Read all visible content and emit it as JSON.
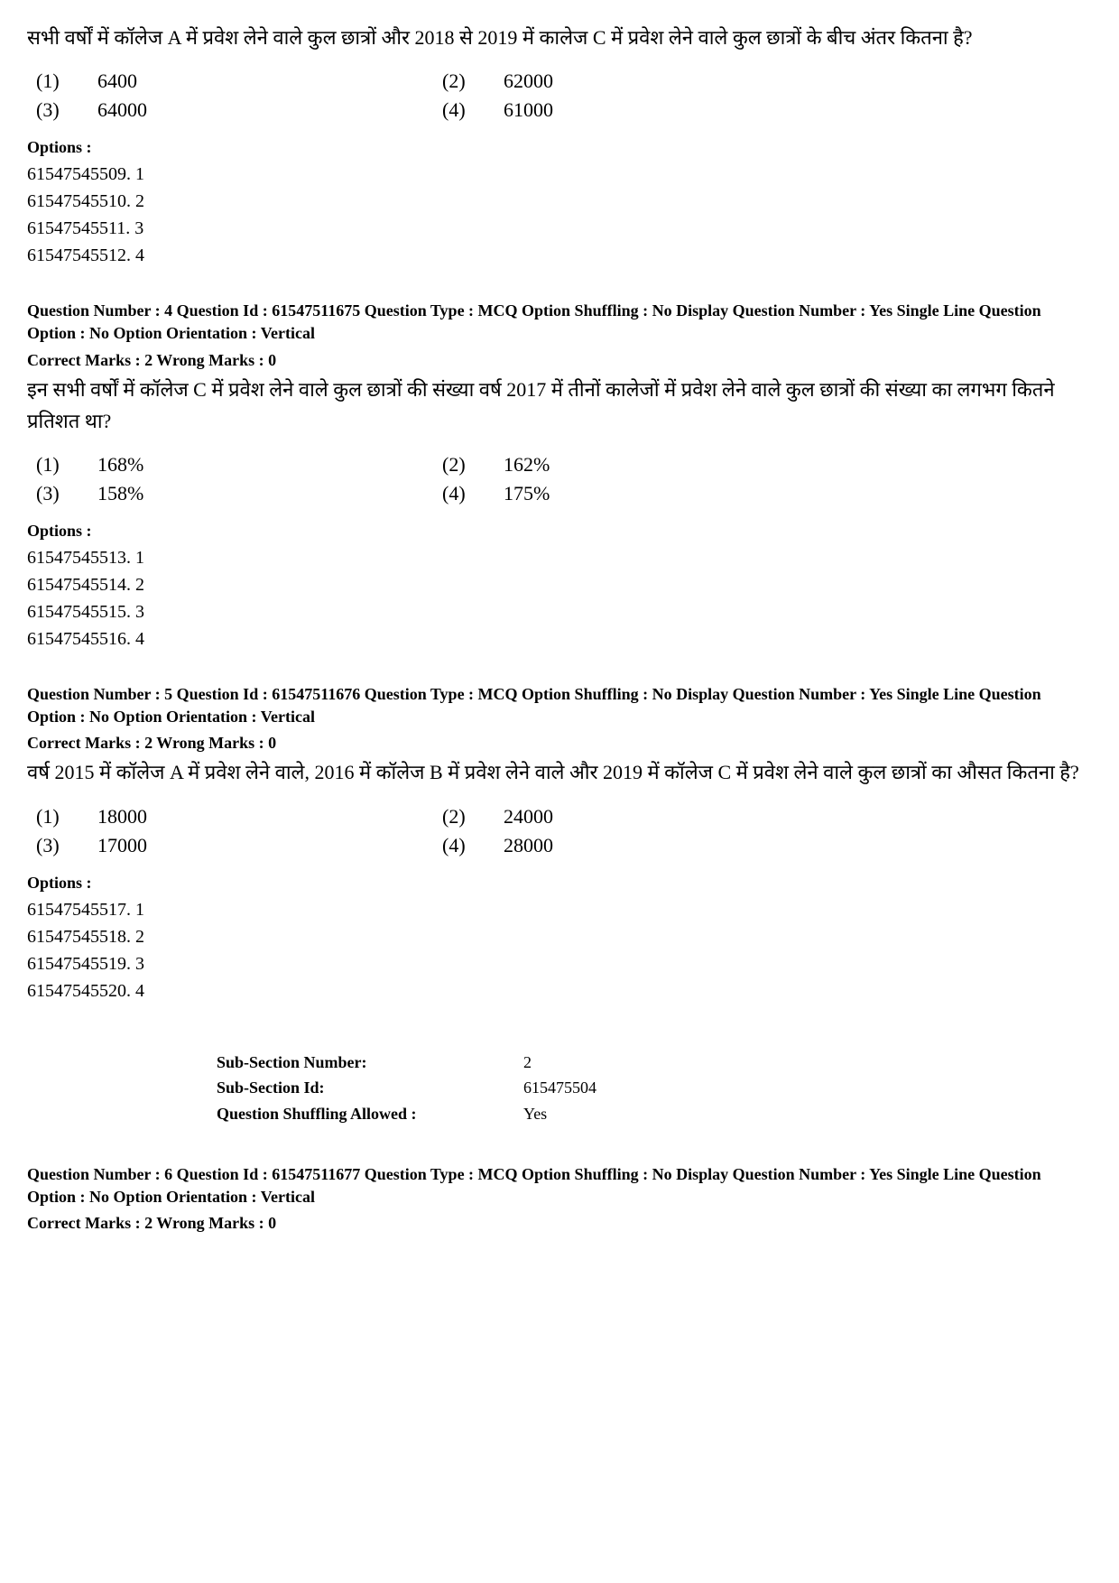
{
  "colors": {
    "text": "#000000",
    "background": "#ffffff"
  },
  "typography": {
    "base_fontsize": 22,
    "meta_fontsize": 18,
    "family": "Times New Roman"
  },
  "q3_partial": {
    "question": "सभी वर्षों में कॉलेज A में प्रवेश लेने वाले कुल छात्रों और 2018 से 2019 में कालेज C में प्रवेश लेने वाले कुल छात्रों के बीच अंतर कितना है?",
    "answers": [
      {
        "n": "(1)",
        "v": "6400"
      },
      {
        "n": "(2)",
        "v": "62000"
      },
      {
        "n": "(3)",
        "v": "64000"
      },
      {
        "n": "(4)",
        "v": "61000"
      }
    ],
    "options_label": "Options :",
    "options": [
      "61547545509. 1",
      "61547545510. 2",
      "61547545511. 3",
      "61547545512. 4"
    ]
  },
  "q4": {
    "meta": "Question Number : 4  Question Id : 61547511675  Question Type : MCQ  Option Shuffling : No  Display Question Number : Yes  Single Line Question Option : No  Option Orientation : Vertical",
    "marks": "Correct Marks : 2  Wrong Marks : 0",
    "question": "इन सभी वर्षों में कॉलेज C में प्रवेश लेने वाले कुल छात्रों की संख्या वर्ष 2017 में तीनों कालेजों में प्रवेश लेने वाले कुल छात्रों की संख्या का लगभग कितने प्रतिशत था?",
    "answers": [
      {
        "n": "(1)",
        "v": "168%"
      },
      {
        "n": "(2)",
        "v": "162%"
      },
      {
        "n": "(3)",
        "v": "158%"
      },
      {
        "n": "(4)",
        "v": "175%"
      }
    ],
    "options_label": "Options :",
    "options": [
      "61547545513. 1",
      "61547545514. 2",
      "61547545515. 3",
      "61547545516. 4"
    ]
  },
  "q5": {
    "meta": "Question Number : 5  Question Id : 61547511676  Question Type : MCQ  Option Shuffling : No  Display Question Number : Yes  Single Line Question Option : No  Option Orientation : Vertical",
    "marks": "Correct Marks : 2  Wrong Marks : 0",
    "question": "वर्ष 2015 में कॉलेज A में प्रवेश लेने वाले, 2016 में कॉलेज B में प्रवेश लेने वाले और 2019 में कॉलेज C में प्रवेश लेने वाले कुल छात्रों का औसत कितना है?",
    "answers": [
      {
        "n": "(1)",
        "v": "18000"
      },
      {
        "n": "(2)",
        "v": "24000"
      },
      {
        "n": "(3)",
        "v": "17000"
      },
      {
        "n": "(4)",
        "v": "28000"
      }
    ],
    "options_label": "Options :",
    "options": [
      "61547545517. 1",
      "61547545518. 2",
      "61547545519. 3",
      "61547545520. 4"
    ]
  },
  "subsection": {
    "rows": [
      {
        "k": "Sub-Section Number:",
        "v": "2"
      },
      {
        "k": "Sub-Section Id:",
        "v": "615475504"
      },
      {
        "k": "Question Shuffling Allowed :",
        "v": "Yes"
      }
    ]
  },
  "q6": {
    "meta": "Question Number : 6  Question Id : 61547511677  Question Type : MCQ  Option Shuffling : No  Display Question Number : Yes  Single Line Question Option : No  Option Orientation : Vertical",
    "marks": "Correct Marks : 2  Wrong Marks : 0"
  }
}
